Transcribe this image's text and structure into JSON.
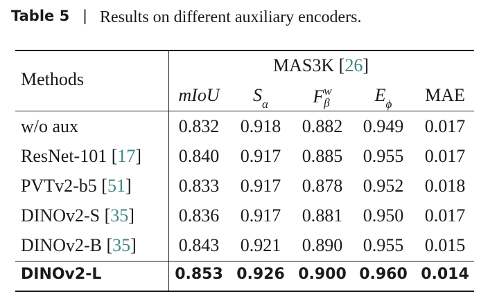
{
  "caption": {
    "label": "Table 5",
    "separator": "|",
    "text": "Results on different auxiliary encoders."
  },
  "table": {
    "methods_header": "Methods",
    "group": {
      "name": "MAS3K",
      "ref": "[26]"
    },
    "columns": [
      {
        "base": "mIoU",
        "italic": true
      },
      {
        "base": "S",
        "sub": "α",
        "italic": true
      },
      {
        "base": "F",
        "sub": "β",
        "sup": "w",
        "italic": true
      },
      {
        "base": "E",
        "sub": "ϕ",
        "italic": true
      },
      {
        "base": "MAE",
        "italic": false
      }
    ],
    "rows": [
      {
        "method": "w/o aux",
        "values": [
          "0.832",
          "0.918",
          "0.882",
          "0.949",
          "0.017"
        ]
      },
      {
        "method": "ResNet-101",
        "ref": "[17]",
        "values": [
          "0.840",
          "0.917",
          "0.885",
          "0.955",
          "0.017"
        ]
      },
      {
        "method": "PVTv2-b5",
        "ref": "[51]",
        "values": [
          "0.833",
          "0.917",
          "0.878",
          "0.952",
          "0.018"
        ]
      },
      {
        "method": "DINOv2-S",
        "ref": "[35]",
        "values": [
          "0.836",
          "0.917",
          "0.881",
          "0.950",
          "0.017"
        ]
      },
      {
        "method": "DINOv2-B",
        "ref": "[35]",
        "values": [
          "0.843",
          "0.921",
          "0.890",
          "0.955",
          "0.015"
        ]
      },
      {
        "method": "DINOv2-L",
        "bold": true,
        "values": [
          "0.853",
          "0.926",
          "0.900",
          "0.960",
          "0.014"
        ]
      }
    ]
  }
}
